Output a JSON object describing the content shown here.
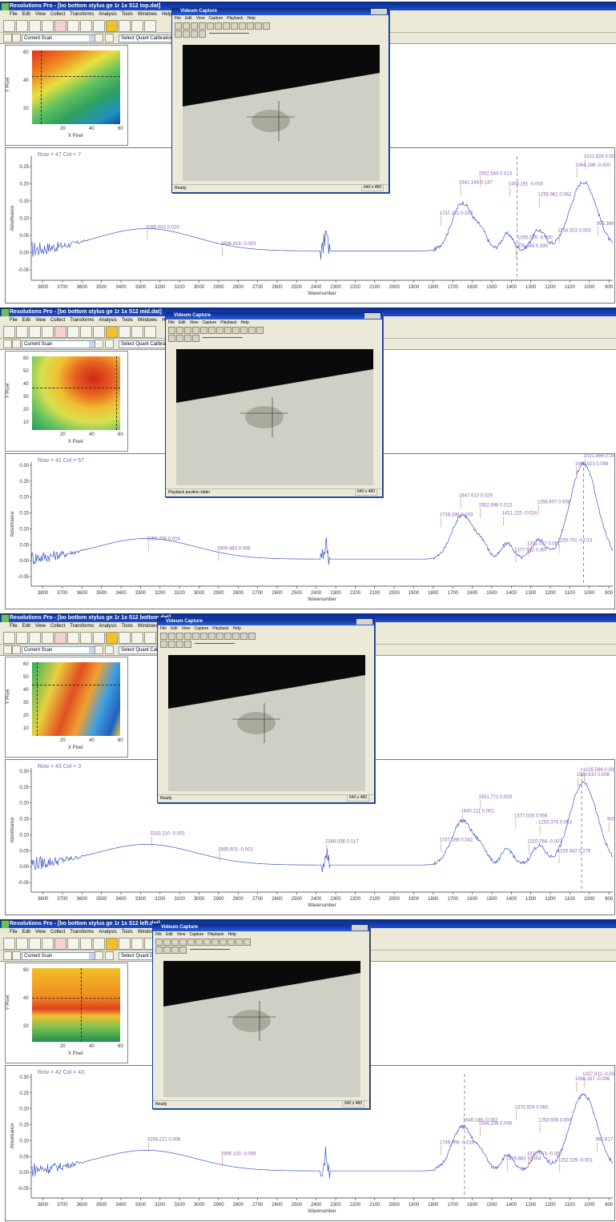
{
  "app": {
    "menus": [
      "File",
      "Edit",
      "View",
      "Collect",
      "Transforms",
      "Analysis",
      "Tools",
      "Windows",
      "Help"
    ],
    "scan_label": "Current Scan",
    "quant_label": "Select Quant Calibration"
  },
  "capture_window": {
    "title": "Videum Capture",
    "menus": [
      "File",
      "Edit",
      "View",
      "Capture",
      "Playback",
      "Help"
    ],
    "status_ready": "Ready",
    "resolution": "640 x 480"
  },
  "map_axes": {
    "ylabel": "Y Pixel",
    "xlabel": "X Pixel"
  },
  "spectrum_axes": {
    "ylabel": "Absorbance",
    "xlabel": "Wavenumber",
    "xticks": [
      "3800",
      "3700",
      "3600",
      "3500",
      "3400",
      "3300",
      "3200",
      "3100",
      "3000",
      "2900",
      "2800",
      "2700",
      "2600",
      "2500",
      "2400",
      "2300",
      "2200",
      "2100",
      "2000",
      "1900",
      "1800",
      "1700",
      "1600",
      "1500",
      "1400",
      "1300",
      "1200",
      "1100",
      "1000",
      "900"
    ]
  },
  "panels": [
    {
      "title": "Resolutions Pro - [bo bottom stylus ge 1r 1x 512 top.dat]",
      "row_col": "Row = 47  Col = 7",
      "map_yticks": [
        "60",
        "40",
        "20"
      ],
      "map_xticks": [
        "20",
        "40",
        "60"
      ],
      "spec_yticks": [
        "0.25",
        "0.20",
        "0.15",
        "0.10",
        "0.05",
        "0.00",
        "-0.05"
      ],
      "status": "",
      "annotations": [
        {
          "text": "3265.003  0.020",
          "wn": 3265,
          "y": 0.07
        },
        {
          "text": "2896.816  -0.003",
          "wn": 2880,
          "y": 0.022
        },
        {
          "text": "1737.121  0.025",
          "wn": 1760,
          "y": 0.11
        },
        {
          "text": "1641.164  0.147",
          "wn": 1660,
          "y": 0.2
        },
        {
          "text": "1552.544  0.013",
          "wn": 1560,
          "y": 0.225
        },
        {
          "text": "1408.191  -0.000",
          "wn": 1408,
          "y": 0.195
        },
        {
          "text": "1255.961  0.062",
          "wn": 1255,
          "y": 0.165
        },
        {
          "text": "1021.826  0.001",
          "wn": 1021,
          "y": 0.275
        },
        {
          "text": "1064.296  -0.000",
          "wn": 1064,
          "y": 0.25
        },
        {
          "text": "1154.323  0.003",
          "wn": 1154,
          "y": 0.06
        },
        {
          "text": "1005.035  -0.000",
          "wn": 1360,
          "y": 0.04
        },
        {
          "text": "1376.549  0.399",
          "wn": 1376,
          "y": 0.015
        },
        {
          "text": "955.369  0.027",
          "wn": 955,
          "y": 0.08
        }
      ]
    },
    {
      "title": "Resolutions Pro - [bo bottom stylus ge 1r 1x 512 mid.dat]",
      "row_col": "Row = 41  Col = 57",
      "map_yticks": [
        "60",
        "50",
        "40",
        "30",
        "20",
        "10"
      ],
      "map_xticks": [
        "20",
        "40",
        "60"
      ],
      "spec_yticks": [
        "0.30",
        "0.25",
        "0.20",
        "0.15",
        "0.10",
        "0.05",
        "0.00",
        "-0.05"
      ],
      "status": "Playback position slider",
      "annotations": [
        {
          "text": "3259.706  0.014",
          "wn": 3260,
          "y": 0.065
        },
        {
          "text": "2909.483  0.006",
          "wn": 2900,
          "y": 0.035
        },
        {
          "text": "1738.336  0.103",
          "wn": 1760,
          "y": 0.14
        },
        {
          "text": "1647.610  0.029",
          "wn": 1660,
          "y": 0.2
        },
        {
          "text": "1552.998  0.013",
          "wn": 1560,
          "y": 0.17
        },
        {
          "text": "1421.225  -0.024",
          "wn": 1440,
          "y": 0.145
        },
        {
          "text": "1256.607  0.938",
          "wn": 1260,
          "y": 0.18
        },
        {
          "text": "1021.866  0.002",
          "wn": 1021,
          "y": 0.325
        },
        {
          "text": "1066.923  0.098",
          "wn": 1066,
          "y": 0.3
        },
        {
          "text": "1377.542  0.397",
          "wn": 1377,
          "y": 0.03
        },
        {
          "text": "1311.037  0.001",
          "wn": 1311,
          "y": 0.05
        },
        {
          "text": "1155.701  -0.013",
          "wn": 1155,
          "y": 0.06
        }
      ]
    },
    {
      "title": "Resolutions Pro - [bo bottom stylus ge 1r 1x 512 bottom.dat]",
      "row_col": "Row = 43  Col = 3",
      "map_yticks": [
        "60",
        "50",
        "40",
        "30",
        "20",
        "10"
      ],
      "map_xticks": [
        "20",
        "40",
        "60"
      ],
      "spec_yticks": [
        "0.30",
        "0.25",
        "0.20",
        "0.15",
        "0.10",
        "0.05",
        "0.00",
        "-0.05"
      ],
      "status": "",
      "annotations": [
        {
          "text": "3243.210  -0.001",
          "wn": 3243,
          "y": 0.1
        },
        {
          "text": "2895.601  -0.002",
          "wn": 2895,
          "y": 0.05
        },
        {
          "text": "2346.038  0.017",
          "wn": 2346,
          "y": 0.075
        },
        {
          "text": "1737.196  0.042",
          "wn": 1760,
          "y": 0.08
        },
        {
          "text": "1640.211  0.001",
          "wn": 1650,
          "y": 0.17
        },
        {
          "text": "1551.771  0.003",
          "wn": 1560,
          "y": 0.215
        },
        {
          "text": "1377.026  0.556",
          "wn": 1377,
          "y": 0.155
        },
        {
          "text": "1253.375  0.053",
          "wn": 1253,
          "y": 0.135
        },
        {
          "text": "1025.596  0.003",
          "wn": 1025,
          "y": 0.3
        },
        {
          "text": "1059.610  0.006",
          "wn": 1059,
          "y": 0.285
        },
        {
          "text": "1310.764  -0.001",
          "wn": 1310,
          "y": 0.075
        },
        {
          "text": "1155.942  0.279",
          "wn": 1155,
          "y": 0.045
        },
        {
          "text": "903.6",
          "wn": 900,
          "y": 0.145
        }
      ]
    },
    {
      "title": "Resolutions Pro - [bo bottom stylus ge 1r 1x 512 left.dat]",
      "row_col": "Row = 42  Col = 43",
      "map_yticks": [
        "60",
        "40",
        "20"
      ],
      "map_xticks": [
        "20",
        "40",
        "60"
      ],
      "spec_yticks": [
        "0.30",
        "0.25",
        "0.20",
        "0.15",
        "0.10",
        "0.05",
        "0.00",
        "-0.05"
      ],
      "status": "",
      "annotations": [
        {
          "text": "3258.221  0.006",
          "wn": 3258,
          "y": 0.1
        },
        {
          "text": "2896.100  -0.006",
          "wn": 2880,
          "y": 0.055
        },
        {
          "text": "1739.956  -0.010",
          "wn": 1760,
          "y": 0.09
        },
        {
          "text": "1646.186  -0.002",
          "wn": 1640,
          "y": 0.16
        },
        {
          "text": "1554.209  0.006",
          "wn": 1560,
          "y": 0.15
        },
        {
          "text": "1375.929  0.060",
          "wn": 1375,
          "y": 0.2
        },
        {
          "text": "1253.936  0.000",
          "wn": 1253,
          "y": 0.16
        },
        {
          "text": "1027.811  -0.005",
          "wn": 1027,
          "y": 0.305
        },
        {
          "text": "1066.267  -0.006",
          "wn": 1066,
          "y": 0.29
        },
        {
          "text": "960.617  0.024",
          "wn": 960,
          "y": 0.1
        },
        {
          "text": "1419.882  -0.004",
          "wn": 1419,
          "y": 0.04
        },
        {
          "text": "1312.013  -0.000",
          "wn": 1312,
          "y": 0.055
        },
        {
          "text": "1152.329  -0.001",
          "wn": 1152,
          "y": 0.035
        }
      ]
    }
  ]
}
